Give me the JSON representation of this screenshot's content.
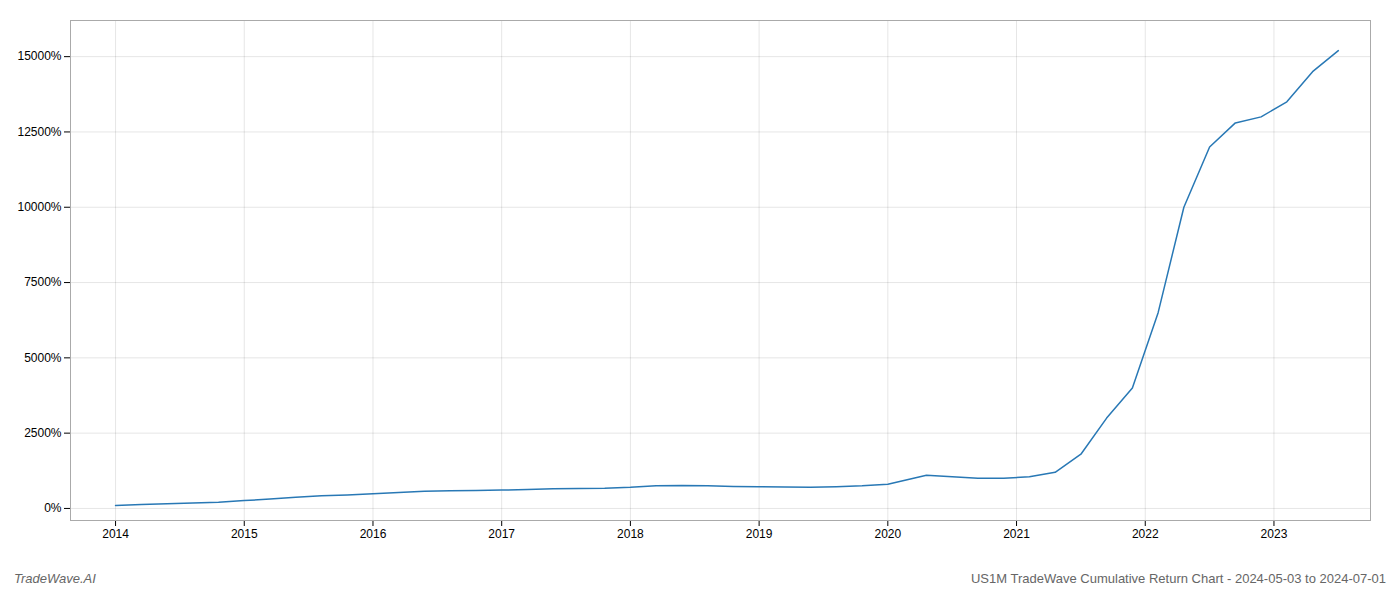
{
  "chart_data": {
    "type": "line",
    "title": "US1M TradeWave Cumulative Return Chart - 2024-05-03 to 2024-07-01",
    "annotations": [
      "TradeWave.AI"
    ],
    "color": "#2878b5",
    "x": [
      2014.0,
      2014.2,
      2014.4,
      2014.6,
      2014.8,
      2015.0,
      2015.2,
      2015.4,
      2015.6,
      2015.8,
      2016.0,
      2016.2,
      2016.4,
      2016.6,
      2016.8,
      2017.0,
      2017.2,
      2017.4,
      2017.6,
      2017.8,
      2018.0,
      2018.2,
      2018.4,
      2018.6,
      2018.8,
      2019.0,
      2019.2,
      2019.4,
      2019.6,
      2019.8,
      2020.0,
      2020.15,
      2020.3,
      2020.5,
      2020.7,
      2020.9,
      2021.1,
      2021.3,
      2021.5,
      2021.7,
      2021.9,
      2022.1,
      2022.3,
      2022.5,
      2022.7,
      2022.9,
      2023.1,
      2023.3,
      2023.5
    ],
    "values": [
      100,
      130,
      160,
      180,
      210,
      260,
      310,
      370,
      420,
      450,
      490,
      530,
      570,
      590,
      600,
      610,
      630,
      650,
      660,
      670,
      700,
      750,
      760,
      750,
      730,
      720,
      710,
      700,
      720,
      750,
      800,
      950,
      1100,
      1050,
      1000,
      1000,
      1050,
      1200,
      1800,
      3000,
      4000,
      6500,
      10000,
      12000,
      12800,
      13000,
      13500,
      14500,
      15200
    ],
    "xlim": [
      2013.65,
      2023.75
    ],
    "ylim": [
      -400,
      16200
    ],
    "xticks": [
      2014,
      2015,
      2016,
      2017,
      2018,
      2019,
      2020,
      2021,
      2022,
      2023
    ],
    "yticks": [
      {
        "value": 0,
        "label": "0%"
      },
      {
        "value": 2500,
        "label": "2500%"
      },
      {
        "value": 5000,
        "label": "5000%"
      },
      {
        "value": 7500,
        "label": "7500%"
      },
      {
        "value": 10000,
        "label": "10000%"
      },
      {
        "value": 12500,
        "label": "12500%"
      },
      {
        "value": 15000,
        "label": "15000%"
      }
    ],
    "grid": true
  }
}
